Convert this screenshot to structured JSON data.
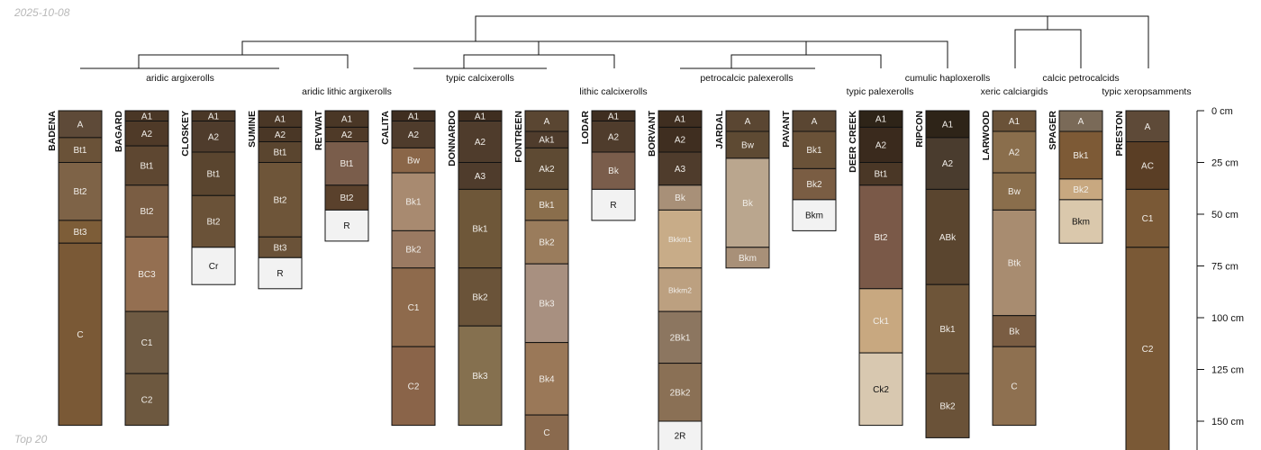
{
  "date": "2025-10-08",
  "footer": "Top 20",
  "axis": {
    "unit": "cm",
    "labels": [
      "0 cm",
      "25 cm",
      "50 cm",
      "75 cm",
      "100 cm",
      "125 cm",
      "150 cm"
    ],
    "values": [
      0,
      25,
      50,
      75,
      100,
      125,
      150
    ],
    "max_depth": 165
  },
  "groups": [
    {
      "label": "aridic argixerolls",
      "members": [
        "BADENA",
        "BAGARD",
        "CLOSKEY",
        "SUMINE"
      ]
    },
    {
      "label": "aridic lithic argixerolls",
      "members": [
        "REYWAT"
      ]
    },
    {
      "label": "typic calcixerolls",
      "members": [
        "CALITA",
        "DONNARDO",
        "FONTREEN"
      ]
    },
    {
      "label": "lithic calcixerolls",
      "members": [
        "LODAR"
      ]
    },
    {
      "label": "petrocalcic palexerolls",
      "members": [
        "BORVANT",
        "JARDAL",
        "PAVANT"
      ]
    },
    {
      "label": "typic palexerolls",
      "members": [
        "DEER CREEK"
      ]
    },
    {
      "label": "cumulic haploxerolls",
      "members": [
        "RIPCON"
      ]
    },
    {
      "label": "xeric calciargids",
      "members": [
        "LARWOOD"
      ]
    },
    {
      "label": "calcic petrocalcids",
      "members": [
        "SPAGER"
      ]
    },
    {
      "label": "typic xeropsamments",
      "members": [
        "PRESTON"
      ]
    }
  ],
  "profiles": [
    {
      "name": "BADENA",
      "horizons": [
        {
          "name": "A",
          "top": 0,
          "bottom": 13,
          "color": "#5e4a38"
        },
        {
          "name": "Bt1",
          "top": 13,
          "bottom": 25,
          "color": "#6a5238"
        },
        {
          "name": "Bt2",
          "top": 25,
          "bottom": 53,
          "color": "#7e6347"
        },
        {
          "name": "Bt3",
          "top": 53,
          "bottom": 64,
          "color": "#7d5d38"
        },
        {
          "name": "C",
          "top": 64,
          "bottom": 152,
          "color": "#7a5936"
        }
      ]
    },
    {
      "name": "BAGARD",
      "horizons": [
        {
          "name": "A1",
          "top": 0,
          "bottom": 5,
          "color": "#4a3726"
        },
        {
          "name": "A2",
          "top": 5,
          "bottom": 17,
          "color": "#4f3a28"
        },
        {
          "name": "Bt1",
          "top": 17,
          "bottom": 36,
          "color": "#5e4731"
        },
        {
          "name": "Bt2",
          "top": 36,
          "bottom": 61,
          "color": "#7a5d43"
        },
        {
          "name": "BC3",
          "top": 61,
          "bottom": 97,
          "color": "#946f51"
        },
        {
          "name": "C1",
          "top": 97,
          "bottom": 127,
          "color": "#6e5a43"
        },
        {
          "name": "C2",
          "top": 127,
          "bottom": 152,
          "color": "#6d583f"
        }
      ]
    },
    {
      "name": "CLOSKEY",
      "horizons": [
        {
          "name": "A1",
          "top": 0,
          "bottom": 5,
          "color": "#4a3726"
        },
        {
          "name": "A2",
          "top": 5,
          "bottom": 20,
          "color": "#4f3c2c"
        },
        {
          "name": "Bt1",
          "top": 20,
          "bottom": 41,
          "color": "#5a452f"
        },
        {
          "name": "Bt2",
          "top": 41,
          "bottom": 66,
          "color": "#6a5238"
        },
        {
          "name": "Cr",
          "top": 66,
          "bottom": 84,
          "color": "#f2f2f2"
        }
      ]
    },
    {
      "name": "SUMINE",
      "horizons": [
        {
          "name": "A1",
          "top": 0,
          "bottom": 8,
          "color": "#4a3726"
        },
        {
          "name": "A2",
          "top": 8,
          "bottom": 15,
          "color": "#4a3726"
        },
        {
          "name": "Bt1",
          "top": 15,
          "bottom": 25,
          "color": "#5a452f"
        },
        {
          "name": "Bt2",
          "top": 25,
          "bottom": 61,
          "color": "#6e5539"
        },
        {
          "name": "Bt3",
          "top": 61,
          "bottom": 71,
          "color": "#6a5238"
        },
        {
          "name": "R",
          "top": 71,
          "bottom": 86,
          "color": "#f2f2f2"
        }
      ]
    },
    {
      "name": "REYWAT",
      "horizons": [
        {
          "name": "A1",
          "top": 0,
          "bottom": 8,
          "color": "#4a3726"
        },
        {
          "name": "A2",
          "top": 8,
          "bottom": 15,
          "color": "#4f3a28"
        },
        {
          "name": "Bt1",
          "top": 15,
          "bottom": 36,
          "color": "#7a5d4b"
        },
        {
          "name": "Bt2",
          "top": 36,
          "bottom": 48,
          "color": "#5a412c"
        },
        {
          "name": "R",
          "top": 48,
          "bottom": 63,
          "color": "#f2f2f2"
        }
      ]
    },
    {
      "name": "CALITA",
      "horizons": [
        {
          "name": "A1",
          "top": 0,
          "bottom": 5,
          "color": "#3f2e20"
        },
        {
          "name": "A2",
          "top": 5,
          "bottom": 18,
          "color": "#4f3c2c"
        },
        {
          "name": "Bw",
          "top": 18,
          "bottom": 30,
          "color": "#8a6648"
        },
        {
          "name": "Bk1",
          "top": 30,
          "bottom": 58,
          "color": "#a88a70"
        },
        {
          "name": "Bk2",
          "top": 58,
          "bottom": 76,
          "color": "#9a7a62"
        },
        {
          "name": "C1",
          "top": 76,
          "bottom": 114,
          "color": "#8e6a4c"
        },
        {
          "name": "C2",
          "top": 114,
          "bottom": 152,
          "color": "#8a6449"
        }
      ]
    },
    {
      "name": "DONNARDO",
      "horizons": [
        {
          "name": "A1",
          "top": 0,
          "bottom": 5,
          "color": "#3f2e20"
        },
        {
          "name": "A2",
          "top": 5,
          "bottom": 25,
          "color": "#4f3c2c"
        },
        {
          "name": "A3",
          "top": 25,
          "bottom": 38,
          "color": "#4f3c2c"
        },
        {
          "name": "Bk1",
          "top": 38,
          "bottom": 76,
          "color": "#6e5739"
        },
        {
          "name": "Bk2",
          "top": 76,
          "bottom": 104,
          "color": "#6a5339"
        },
        {
          "name": "Bk3",
          "top": 104,
          "bottom": 152,
          "color": "#85704f"
        }
      ]
    },
    {
      "name": "FONTREEN",
      "horizons": [
        {
          "name": "A",
          "top": 0,
          "bottom": 10,
          "color": "#5a4632"
        },
        {
          "name": "Ak1",
          "top": 10,
          "bottom": 18,
          "color": "#4f3c2c"
        },
        {
          "name": "Ak2",
          "top": 18,
          "bottom": 38,
          "color": "#5e4a33"
        },
        {
          "name": "Bk1",
          "top": 38,
          "bottom": 53,
          "color": "#8a6e4c"
        },
        {
          "name": "Bk2",
          "top": 53,
          "bottom": 74,
          "color": "#9a7c5c"
        },
        {
          "name": "Bk3",
          "top": 74,
          "bottom": 112,
          "color": "#a89080"
        },
        {
          "name": "Bk4",
          "top": 112,
          "bottom": 147,
          "color": "#9a7858"
        },
        {
          "name": "C",
          "top": 147,
          "bottom": 165,
          "color": "#8a6a4e"
        }
      ]
    },
    {
      "name": "LODAR",
      "horizons": [
        {
          "name": "A1",
          "top": 0,
          "bottom": 5,
          "color": "#3f2e20"
        },
        {
          "name": "A2",
          "top": 5,
          "bottom": 20,
          "color": "#4f3c2c"
        },
        {
          "name": "Bk",
          "top": 20,
          "bottom": 38,
          "color": "#7a5d4b"
        },
        {
          "name": "R",
          "top": 38,
          "bottom": 53,
          "color": "#f2f2f2"
        }
      ]
    },
    {
      "name": "BORVANT",
      "horizons": [
        {
          "name": "A1",
          "top": 0,
          "bottom": 8,
          "color": "#3f2e20"
        },
        {
          "name": "A2",
          "top": 8,
          "bottom": 20,
          "color": "#3f2e20"
        },
        {
          "name": "A3",
          "top": 20,
          "bottom": 36,
          "color": "#4f3c2c"
        },
        {
          "name": "Bk",
          "top": 36,
          "bottom": 48,
          "color": "#a89078"
        },
        {
          "name": "Bkkm1",
          "top": 48,
          "bottom": 76,
          "color": "#c8ac88"
        },
        {
          "name": "Bkkm2",
          "top": 76,
          "bottom": 97,
          "color": "#bca080"
        },
        {
          "name": "2Bk1",
          "top": 97,
          "bottom": 122,
          "color": "#8c7660"
        },
        {
          "name": "2Bk2",
          "top": 122,
          "bottom": 150,
          "color": "#8a7055"
        },
        {
          "name": "2R",
          "top": 150,
          "bottom": 165,
          "color": "#f2f2f2"
        }
      ]
    },
    {
      "name": "JARDAL",
      "horizons": [
        {
          "name": "A",
          "top": 0,
          "bottom": 10,
          "color": "#5a4632"
        },
        {
          "name": "Bw",
          "top": 10,
          "bottom": 23,
          "color": "#5e4a33"
        },
        {
          "name": "Bk",
          "top": 23,
          "bottom": 66,
          "color": "#baa68e"
        },
        {
          "name": "Bkm",
          "top": 66,
          "bottom": 76,
          "color": "#a89078"
        }
      ]
    },
    {
      "name": "PAVANT",
      "horizons": [
        {
          "name": "A",
          "top": 0,
          "bottom": 10,
          "color": "#5a4632"
        },
        {
          "name": "Bk1",
          "top": 10,
          "bottom": 28,
          "color": "#6a5238"
        },
        {
          "name": "Bk2",
          "top": 28,
          "bottom": 43,
          "color": "#7a5d43"
        },
        {
          "name": "Bkm",
          "top": 43,
          "bottom": 58,
          "color": "#f2f2f2"
        }
      ]
    },
    {
      "name": "DEER CREEK",
      "horizons": [
        {
          "name": "A1",
          "top": 0,
          "bottom": 8,
          "color": "#2e2418"
        },
        {
          "name": "A2",
          "top": 8,
          "bottom": 25,
          "color": "#3a2a1d"
        },
        {
          "name": "Bt1",
          "top": 25,
          "bottom": 36,
          "color": "#4a3726"
        },
        {
          "name": "Bt2",
          "top": 36,
          "bottom": 86,
          "color": "#7a5948"
        },
        {
          "name": "Ck1",
          "top": 86,
          "bottom": 117,
          "color": "#c8a880"
        },
        {
          "name": "Ck2",
          "top": 117,
          "bottom": 152,
          "color": "#d8c8b0"
        }
      ]
    },
    {
      "name": "RIPCON",
      "horizons": [
        {
          "name": "A1",
          "top": 0,
          "bottom": 13,
          "color": "#2e2418"
        },
        {
          "name": "A2",
          "top": 13,
          "bottom": 38,
          "color": "#4a3c2e"
        },
        {
          "name": "ABk",
          "top": 38,
          "bottom": 84,
          "color": "#5a452f"
        },
        {
          "name": "Bk1",
          "top": 84,
          "bottom": 127,
          "color": "#6e5539"
        },
        {
          "name": "Bk2",
          "top": 127,
          "bottom": 158,
          "color": "#6a5238"
        }
      ]
    },
    {
      "name": "LARWOOD",
      "horizons": [
        {
          "name": "A1",
          "top": 0,
          "bottom": 10,
          "color": "#6a5238"
        },
        {
          "name": "A2",
          "top": 10,
          "bottom": 30,
          "color": "#8a6e4c"
        },
        {
          "name": "Bw",
          "top": 30,
          "bottom": 48,
          "color": "#8a6e4c"
        },
        {
          "name": "Btk",
          "top": 48,
          "bottom": 99,
          "color": "#a88c70"
        },
        {
          "name": "Bk",
          "top": 99,
          "bottom": 114,
          "color": "#7a5d43"
        },
        {
          "name": "C",
          "top": 114,
          "bottom": 152,
          "color": "#8e7050"
        }
      ]
    },
    {
      "name": "SPAGER",
      "horizons": [
        {
          "name": "A",
          "top": 0,
          "bottom": 10,
          "color": "#7a6a58"
        },
        {
          "name": "Bk1",
          "top": 10,
          "bottom": 33,
          "color": "#7d5a36"
        },
        {
          "name": "Bk2",
          "top": 33,
          "bottom": 43,
          "color": "#c8a880"
        },
        {
          "name": "Bkm",
          "top": 43,
          "bottom": 64,
          "color": "#dac8ac"
        }
      ]
    },
    {
      "name": "PRESTON",
      "horizons": [
        {
          "name": "A",
          "top": 0,
          "bottom": 15,
          "color": "#5e4a38"
        },
        {
          "name": "AC",
          "top": 15,
          "bottom": 38,
          "color": "#5a3e25"
        },
        {
          "name": "C1",
          "top": 38,
          "bottom": 66,
          "color": "#7a5936"
        },
        {
          "name": "C2",
          "top": 66,
          "bottom": 165,
          "color": "#7a5936"
        }
      ]
    }
  ]
}
